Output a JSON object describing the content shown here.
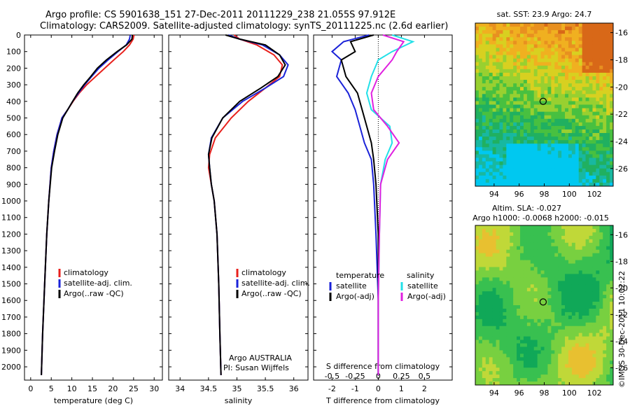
{
  "header": {
    "line1": "Argo profile: CS 5901638_151 27-Dec-2011 20111229_238 21.055S 97.912E",
    "line2": "Climatology: CARS2009. Satellite-adjusted climatology: synTS_20111225.nc (2.6d earlier)"
  },
  "watermark": "©IMOS 30-Dec-2011 10:02:22",
  "colors": {
    "climatology": "#e8201c",
    "satellite": "#1a22d8",
    "argo": "#000000",
    "sal_satellite": "#22e0e8",
    "sal_argo": "#e020e0"
  },
  "chart_data": [
    {
      "type": "line",
      "panel": "temperature",
      "xlabel": "temperature (deg C)",
      "ylabel": "",
      "xlim": [
        -1.5,
        32
      ],
      "ylim": [
        2080,
        0
      ],
      "xticks": [
        0,
        5,
        10,
        15,
        20,
        25,
        30
      ],
      "yticks": [
        0,
        100,
        200,
        300,
        400,
        500,
        600,
        700,
        800,
        900,
        1000,
        1100,
        1200,
        1300,
        1400,
        1500,
        1600,
        1700,
        1800,
        1900,
        2000
      ],
      "legend": [
        "climatology",
        "satellite-adj. clim.",
        "Argo(..raw -QC)"
      ],
      "legend_placement": "lower-right",
      "series": [
        {
          "name": "climatology",
          "color_key": "climatology",
          "x": [
            25.1,
            24.9,
            24.0,
            22.5,
            20.2,
            18.0,
            15.8,
            13.6,
            11.8,
            10.3,
            9.0,
            7.6,
            6.4,
            5.6,
            5.0,
            4.4,
            3.9,
            3.4,
            2.9,
            2.6
          ],
          "y": [
            0,
            25,
            60,
            100,
            150,
            200,
            250,
            300,
            350,
            400,
            450,
            500,
            600,
            700,
            800,
            1000,
            1200,
            1500,
            1800,
            2050
          ]
        },
        {
          "name": "satellite-adj. clim.",
          "color_key": "satellite",
          "x": [
            24.2,
            24.0,
            23.2,
            21.2,
            18.8,
            16.6,
            14.8,
            13.1,
            11.6,
            10.2,
            9.0,
            7.6,
            6.4,
            5.6,
            5.0,
            4.4,
            3.9,
            3.4,
            2.9,
            2.6
          ],
          "y": [
            0,
            25,
            60,
            100,
            150,
            200,
            250,
            300,
            350,
            400,
            450,
            500,
            600,
            700,
            800,
            1000,
            1200,
            1500,
            1800,
            2050
          ]
        },
        {
          "name": "Argo(..raw -QC)",
          "color_key": "argo",
          "x": [
            24.7,
            24.6,
            23.3,
            21.0,
            18.4,
            16.2,
            14.6,
            12.9,
            11.4,
            10.2,
            9.0,
            7.8,
            6.6,
            5.8,
            5.1,
            4.4,
            3.9,
            3.4,
            2.9,
            2.6
          ],
          "y": [
            0,
            25,
            60,
            100,
            150,
            200,
            250,
            300,
            350,
            400,
            450,
            500,
            600,
            700,
            800,
            1000,
            1200,
            1500,
            1800,
            2050
          ]
        }
      ]
    },
    {
      "type": "line",
      "panel": "salinity",
      "xlabel": "salinity",
      "ylabel": "",
      "xlim": [
        33.8,
        36.25
      ],
      "ylim": [
        2080,
        0
      ],
      "xticks": [
        34,
        34.5,
        35,
        35.5,
        36
      ],
      "legend": [
        "climatology",
        "satellite-adj. clim.",
        "Argo(..raw -QC)"
      ],
      "legend_placement": "lower-right",
      "annotation": [
        "Argo AUSTRALIA",
        "PI: Susan Wijffels"
      ],
      "series": [
        {
          "name": "climatology",
          "color_key": "climatology",
          "x": [
            34.95,
            35.05,
            35.35,
            35.65,
            35.8,
            35.75,
            35.5,
            35.2,
            34.9,
            34.62,
            34.52,
            34.5,
            34.55,
            34.6,
            34.65,
            34.68,
            34.7,
            34.72
          ],
          "y": [
            0,
            25,
            60,
            120,
            180,
            250,
            320,
            400,
            500,
            620,
            720,
            800,
            900,
            1000,
            1200,
            1500,
            1800,
            2050
          ]
        },
        {
          "name": "satellite-adj. clim.",
          "color_key": "satellite",
          "x": [
            34.85,
            35.05,
            35.45,
            35.75,
            35.9,
            35.82,
            35.5,
            35.1,
            34.75,
            34.55,
            34.5,
            34.52,
            34.55,
            34.6,
            34.65,
            34.68,
            34.7,
            34.72
          ],
          "y": [
            0,
            25,
            60,
            120,
            180,
            250,
            320,
            400,
            500,
            620,
            720,
            800,
            900,
            1000,
            1200,
            1500,
            1800,
            2050
          ]
        },
        {
          "name": "Argo(..raw -QC)",
          "color_key": "argo",
          "x": [
            34.8,
            35.05,
            35.5,
            35.75,
            35.85,
            35.72,
            35.42,
            35.05,
            34.75,
            34.56,
            34.5,
            34.52,
            34.55,
            34.6,
            34.65,
            34.68,
            34.7,
            34.72
          ],
          "y": [
            0,
            25,
            60,
            120,
            180,
            250,
            320,
            400,
            500,
            620,
            720,
            800,
            900,
            1000,
            1200,
            1500,
            1800,
            2050
          ]
        }
      ]
    },
    {
      "type": "line",
      "panel": "difference",
      "xlabel": "T difference from climatology",
      "xlabel_top": "S difference from climatology",
      "xlim": [
        -2.8,
        3.2
      ],
      "ylim": [
        2080,
        0
      ],
      "xticks_T": [
        -2,
        -1,
        0,
        1,
        2
      ],
      "xticks_S_labels": [
        "-0.5",
        "-0.25",
        "0",
        "0.25",
        "0.5"
      ],
      "xticks_S_positions_T": [
        -2,
        -1,
        0,
        1,
        2
      ],
      "legend_temperature_title": "temperature",
      "legend_salinity_title": "salinity",
      "legend": [
        "satellite",
        "Argo(-adj)",
        "satellite",
        "Argo(-adj)"
      ],
      "legend_placement": "lower-center",
      "series": [
        {
          "name": "temperature satellite",
          "color_key": "satellite",
          "x": [
            -0.4,
            -1.5,
            -2.0,
            -1.6,
            -1.8,
            -1.3,
            -1.0,
            -0.8,
            -0.6,
            -0.3,
            -0.2,
            -0.1,
            0,
            0
          ],
          "y": [
            0,
            40,
            100,
            150,
            250,
            350,
            450,
            550,
            650,
            750,
            900,
            1200,
            1600,
            2050
          ]
        },
        {
          "name": "temperature Argo(-adj)",
          "color_key": "argo",
          "x": [
            -0.2,
            -1.2,
            -1.0,
            -1.6,
            -1.4,
            -0.9,
            -0.7,
            -0.5,
            -0.3,
            -0.2,
            -0.1,
            0,
            0,
            0
          ],
          "y": [
            0,
            40,
            100,
            150,
            250,
            350,
            450,
            550,
            650,
            750,
            900,
            1200,
            1600,
            2050
          ]
        },
        {
          "name": "salinity satellite",
          "color_key": "sal_satellite",
          "x": [
            0.6,
            1.5,
            0.6,
            0.0,
            -0.3,
            -0.5,
            -0.3,
            0.5,
            0.6,
            0.3,
            0.1,
            0.05,
            0,
            0
          ],
          "y": [
            0,
            40,
            100,
            150,
            250,
            350,
            450,
            550,
            650,
            750,
            900,
            1200,
            1600,
            2050
          ]
        },
        {
          "name": "salinity Argo(-adj)",
          "color_key": "sal_argo",
          "x": [
            0.2,
            1.1,
            0.8,
            0.6,
            0.0,
            -0.3,
            -0.2,
            0.4,
            0.9,
            0.4,
            0.1,
            0.05,
            0,
            0
          ],
          "y": [
            0,
            40,
            100,
            150,
            250,
            350,
            450,
            550,
            650,
            750,
            900,
            1200,
            1600,
            2050
          ]
        }
      ]
    },
    {
      "type": "heatmap",
      "panel": "sst_map",
      "title": "sat. SST: 23.9 Argo: 24.7",
      "xlim": [
        92.5,
        103.5
      ],
      "ylim": [
        -27.3,
        -15.3
      ],
      "xticks": [
        94,
        96,
        98,
        100,
        102
      ],
      "yticks": [
        -16,
        -18,
        -20,
        -22,
        -24,
        -26
      ],
      "marker": {
        "lon": 97.912,
        "lat": -21.055
      },
      "palette": [
        "#00c8f0",
        "#18b8a0",
        "#20b060",
        "#48c040",
        "#98d030",
        "#d8d020",
        "#f0b020",
        "#e89020",
        "#d86818"
      ]
    },
    {
      "type": "heatmap",
      "panel": "sla_map",
      "title_line1": "Altim. SLA: -0.027",
      "title_line2": "Argo h1000: -0.0068 h2000: -0.015",
      "xlim": [
        92.5,
        103.5
      ],
      "ylim": [
        -27.3,
        -15.3
      ],
      "xticks": [
        94,
        96,
        98,
        100,
        102
      ],
      "yticks": [
        -16,
        -18,
        -20,
        -22,
        -24,
        -26
      ],
      "marker": {
        "lon": 97.912,
        "lat": -21.055
      },
      "palette": [
        "#10a858",
        "#38c050",
        "#78d040",
        "#c0d838",
        "#e8c030",
        "#e89028"
      ]
    }
  ]
}
